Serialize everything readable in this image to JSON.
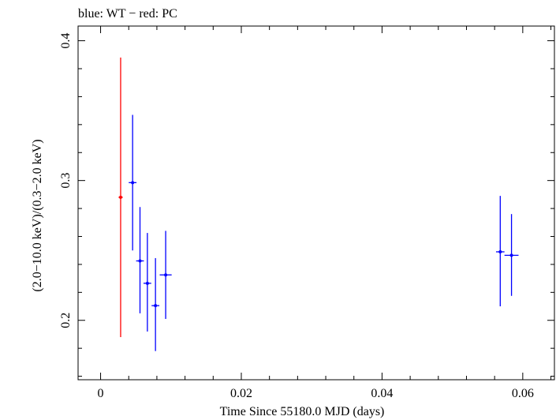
{
  "chart_data": {
    "type": "scatter",
    "title": "blue: WT − red: PC",
    "xlabel": "Time Since 55180.0 MJD (days)",
    "ylabel": "(2.0−10.0 keV)/(0.3−2.0 keV)",
    "xlim": [
      -0.0032,
      0.0645
    ],
    "ylim": [
      0.1575,
      0.4105
    ],
    "xticks": [
      {
        "value": 0,
        "label": "0"
      },
      {
        "value": 0.02,
        "label": "0.02"
      },
      {
        "value": 0.04,
        "label": "0.04"
      },
      {
        "value": 0.06,
        "label": "0.06"
      }
    ],
    "yticks": [
      {
        "value": 0.2,
        "label": "0.2"
      },
      {
        "value": 0.3,
        "label": "0.3"
      },
      {
        "value": 0.4,
        "label": "0.4"
      }
    ],
    "series": [
      {
        "name": "PC",
        "color": "#ff0000",
        "points": [
          {
            "x": 0.00285,
            "xerr": 0.0003,
            "y": 0.288,
            "ylo": 0.188,
            "yhi": 0.388
          }
        ]
      },
      {
        "name": "WT",
        "color": "#0000ff",
        "points": [
          {
            "x": 0.00455,
            "xerr": 0.00055,
            "y": 0.2985,
            "ylo": 0.25,
            "yhi": 0.347
          },
          {
            "x": 0.0056,
            "xerr": 0.00055,
            "y": 0.2425,
            "ylo": 0.205,
            "yhi": 0.281
          },
          {
            "x": 0.00665,
            "xerr": 0.00055,
            "y": 0.2265,
            "ylo": 0.192,
            "yhi": 0.2625
          },
          {
            "x": 0.0078,
            "xerr": 0.00055,
            "y": 0.2105,
            "ylo": 0.178,
            "yhi": 0.2445
          },
          {
            "x": 0.00925,
            "xerr": 0.00085,
            "y": 0.2325,
            "ylo": 0.201,
            "yhi": 0.264
          },
          {
            "x": 0.0568,
            "xerr": 0.0006,
            "y": 0.249,
            "ylo": 0.21,
            "yhi": 0.289
          },
          {
            "x": 0.0584,
            "xerr": 0.001,
            "y": 0.2465,
            "ylo": 0.2175,
            "yhi": 0.276
          }
        ]
      }
    ]
  }
}
